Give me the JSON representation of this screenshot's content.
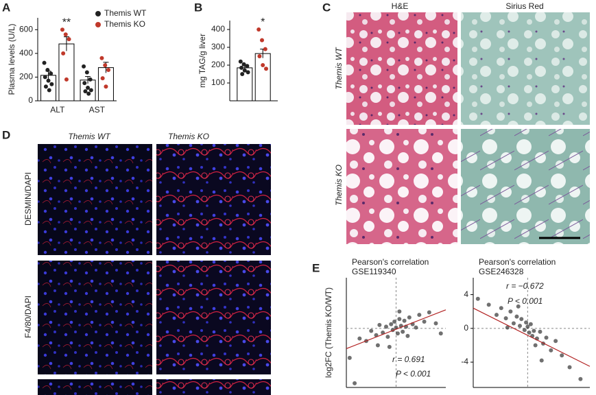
{
  "chart_data": [
    {
      "type": "bar",
      "panel_label": "A",
      "ylabel": "Plasma levels (U/L)",
      "categories": [
        "ALT",
        "AST"
      ],
      "ylim": [
        0,
        700
      ],
      "yticks": [
        0,
        200,
        400,
        600
      ],
      "series": [
        {
          "name": "Themis WT",
          "color": "#222222",
          "values": [
            215,
            175
          ],
          "errors": [
            35,
            30
          ],
          "points": [
            [
              320,
              260,
              230,
              200,
              170,
              140,
              120,
              90
            ],
            [
              290,
              240,
              180,
              150,
              110,
              90,
              80,
              60
            ]
          ]
        },
        {
          "name": "Themis KO",
          "color": "#c0392b",
          "values": [
            480,
            280
          ],
          "errors": [
            60,
            45
          ],
          "points": [
            [
              600,
              560,
              520,
              400,
              180
            ],
            [
              360,
              300,
              260,
              190,
              120
            ]
          ]
        }
      ],
      "annotations": [
        "**"
      ]
    },
    {
      "type": "bar",
      "panel_label": "B",
      "ylabel": "mg TAG/g liver",
      "categories": [
        null
      ],
      "ylim": [
        0,
        450
      ],
      "yticks": [
        100,
        200,
        300,
        400
      ],
      "series": [
        {
          "color": "#222222",
          "values": [
            185
          ],
          "errors": [
            12
          ],
          "points": [
            [
              220,
              205,
              195,
              185,
              170,
              160,
              150
            ]
          ]
        },
        {
          "color": "#c0392b",
          "values": [
            265
          ],
          "errors": [
            25
          ],
          "points": [
            [
              400,
              340,
              290,
              250,
              200,
              180
            ]
          ]
        }
      ],
      "annotations": [
        "*"
      ]
    },
    {
      "type": "scatter",
      "panel_label": "E",
      "title": "Pearson's correlation",
      "subtitle": "GSE119340",
      "ylabel": "log2FC (Themis KO/WT)",
      "xlim": [
        -3,
        3
      ],
      "ylim": [
        -7,
        6
      ],
      "color": "#333333",
      "trend_color": "#b22222",
      "x": [
        -2.8,
        -2.2,
        -1.8,
        -1.5,
        -1.2,
        -1.0,
        -0.8,
        -0.6,
        -0.5,
        -0.3,
        -0.2,
        -0.1,
        0,
        0.1,
        0.2,
        0.3,
        0.4,
        0.5,
        0.6,
        0.8,
        1.0,
        1.2,
        1.4,
        1.7,
        2.0,
        2.4,
        -0.4,
        0.2,
        0.7,
        -1.1,
        2.7,
        -2.5
      ],
      "values": [
        -3.5,
        -1.2,
        -1.5,
        -0.3,
        -0.8,
        0.4,
        -0.5,
        0.2,
        -1.0,
        0.5,
        -0.2,
        0.8,
        0.1,
        -0.6,
        1.1,
        0.3,
        -0.4,
        0.9,
        0.2,
        1.3,
        0.5,
        0.1,
        1.6,
        0.8,
        1.9,
        0.6,
        -2.2,
        2.0,
        -0.9,
        -2.0,
        -0.6,
        -6.5
      ],
      "trend": {
        "x": [
          -3,
          3
        ],
        "values": [
          -2.4,
          2.2
        ]
      },
      "annotations": [
        "r = 0.691",
        "P < 0.001"
      ]
    },
    {
      "type": "scatter",
      "title": "Pearson's correlation",
      "subtitle": "GSE246328",
      "xlim": [
        -3.5,
        4
      ],
      "ylim": [
        -7,
        6
      ],
      "yticks": [
        -4,
        0,
        4
      ],
      "color": "#333333",
      "trend_color": "#b22222",
      "x": [
        -3.2,
        -2.5,
        -2.0,
        -1.7,
        -1.4,
        -1.1,
        -0.9,
        -0.7,
        -0.5,
        -0.4,
        -0.2,
        -0.1,
        0,
        0.1,
        0.2,
        0.3,
        0.4,
        0.6,
        0.8,
        1.0,
        1.2,
        1.5,
        1.8,
        2.2,
        2.7,
        3.4,
        -0.6,
        0.5,
        -1.3,
        0.9
      ],
      "values": [
        3.5,
        2.8,
        1.6,
        2.4,
        1.2,
        2.0,
        0.6,
        1.4,
        0.3,
        1.1,
        -0.2,
        0.7,
        0.2,
        -0.5,
        0.5,
        -0.9,
        -0.3,
        -1.2,
        -0.4,
        -1.8,
        -1.1,
        -2.6,
        -1.5,
        -3.2,
        -4.6,
        -6.0,
        2.6,
        -2.0,
        0.1,
        -3.8
      ],
      "trend": {
        "x": [
          -3.5,
          4
        ],
        "values": [
          2.4,
          -4.5
        ]
      },
      "annotations": [
        "r = −0.672",
        "P < 0.001"
      ]
    }
  ],
  "panels": {
    "C": {
      "label": "C",
      "columns": [
        "H&E",
        "Sirius Red"
      ],
      "rows": [
        "Themis WT",
        "Themis KO"
      ]
    },
    "D": {
      "label": "D",
      "columns": [
        "Themis WT",
        "Themis KO"
      ],
      "rows": [
        "DESMIN/DAPI",
        "F4/80/DAPI"
      ]
    }
  }
}
